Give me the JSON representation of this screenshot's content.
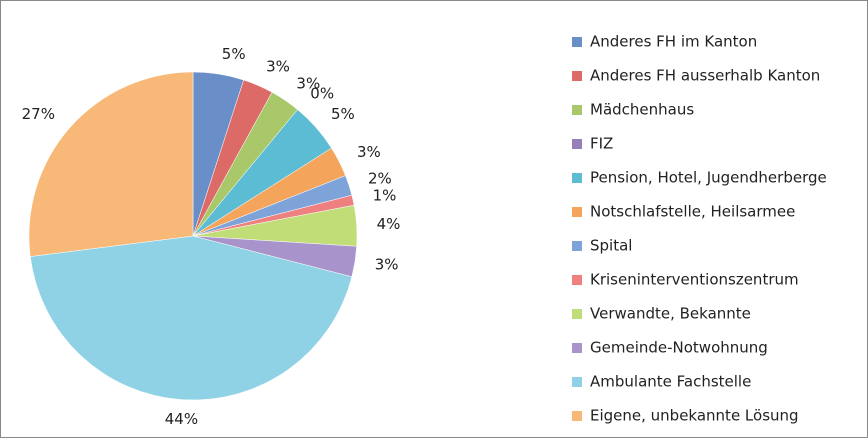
{
  "chart_data": {
    "type": "pie",
    "categories": [
      "Anderes FH im Kanton",
      "Anderes FH ausserhalb Kanton",
      "Mädchenhaus",
      "FIZ",
      "Pension, Hotel, Jugendherberge",
      "Notschlafstelle, Heilsarmee",
      "Spital",
      "Kriseninterventionszentrum",
      "Verwandte, Bekannte",
      "Gemeinde-Notwohnung",
      "Ambulante Fachstelle",
      "Eigene, unbekannte Lösung"
    ],
    "values": [
      5,
      3,
      3,
      0,
      5,
      3,
      2,
      1,
      4,
      3,
      44,
      27
    ],
    "value_labels": [
      "5%",
      "3%",
      "3%",
      "0%",
      "5%",
      "3%",
      "2%",
      "1%",
      "4%",
      "3%",
      "44%",
      "27%"
    ],
    "colors": [
      "#6a8fc8",
      "#dc6b68",
      "#a9c86a",
      "#9580b8",
      "#5cbcd4",
      "#f5a45c",
      "#7ea3d8",
      "#ee8080",
      "#c0dd78",
      "#a893cb",
      "#8fd2e6",
      "#f7b878"
    ],
    "legend": "right"
  }
}
